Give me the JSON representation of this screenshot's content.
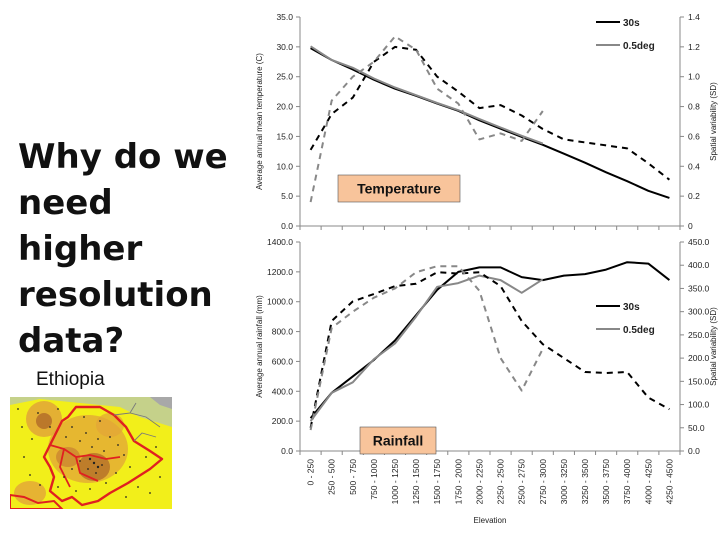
{
  "slide": {
    "question_lines": [
      "Why do we",
      "need higher",
      "resolution",
      "data?"
    ],
    "region_label": "Ethiopia",
    "map_icon": "ethiopia-map-icon",
    "colors": {
      "tag_background": "#f8c49b",
      "map_background": "#f2ef1a",
      "map_blob": "#e2a438",
      "map_border": "#e02020"
    }
  },
  "chart_data": [
    {
      "type": "line",
      "title": "Temperature",
      "xlabel": "",
      "ylabel": "Average annual mean temperature (C)",
      "y2label": "Spatial variability (SD)",
      "ylim": [
        0,
        35
      ],
      "y_ticks": [
        "0.0",
        "5.0",
        "10.0",
        "15.0",
        "20.0",
        "25.0",
        "30.0",
        "35.0"
      ],
      "y2lim": [
        0,
        1.4
      ],
      "y2_ticks": [
        "0",
        "0.2",
        "0.4",
        "0.6",
        "0.8",
        "1.0",
        "1.2",
        "1.4"
      ],
      "legend": "top-right",
      "grid": false,
      "categories": [
        "0 - 250",
        "250 - 500",
        "500 - 750",
        "750 - 1000",
        "1000 - 1250",
        "1250 - 1500",
        "1500 - 1750",
        "1750 - 2000",
        "2000 - 2250",
        "2250 - 2500",
        "2500 - 2750",
        "2750 - 3000",
        "3000 - 3250",
        "3250 - 3500",
        "3500 - 3750",
        "3750 - 4000",
        "4000 - 4250",
        "4250 - 4500"
      ],
      "series": [
        {
          "name": "30s",
          "axis": "left",
          "style": "solid",
          "color": "#000000",
          "values": [
            29.8,
            27.8,
            26.2,
            24.5,
            23.0,
            21.8,
            20.5,
            19.3,
            17.7,
            16.3,
            14.9,
            13.6,
            12.1,
            10.6,
            9.0,
            7.5,
            5.9,
            4.7
          ]
        },
        {
          "name": "0.5deg",
          "axis": "left",
          "style": "solid",
          "color": "#888888",
          "values": [
            30.1,
            27.8,
            26.5,
            24.7,
            23.2,
            21.9,
            20.6,
            19.4,
            17.9,
            16.5,
            15.1,
            13.8,
            null,
            null,
            null,
            null,
            null,
            null
          ]
        },
        {
          "name": "30s SD",
          "axis": "right",
          "style": "dashed",
          "color": "#000000",
          "values": [
            0.51,
            0.75,
            0.86,
            1.1,
            1.2,
            1.18,
            1.0,
            0.9,
            0.79,
            0.81,
            0.74,
            0.65,
            0.58,
            0.56,
            0.54,
            0.52,
            0.42,
            0.31
          ]
        },
        {
          "name": "0.5deg SD",
          "axis": "right",
          "style": "dashed",
          "color": "#888888",
          "values": [
            0.16,
            0.84,
            1.0,
            1.1,
            1.27,
            1.18,
            0.92,
            0.82,
            0.58,
            0.62,
            0.57,
            0.77,
            null,
            null,
            null,
            null,
            null,
            null
          ]
        }
      ]
    },
    {
      "type": "line",
      "title": "Rainfall",
      "xlabel": "Elevation",
      "ylabel": "Average annual rainfall (mm)",
      "y2label": "Spatial variability (SD)",
      "ylim": [
        0,
        1400
      ],
      "y_ticks": [
        "0.0",
        "200.0",
        "400.0",
        "600.0",
        "800.0",
        "1000.0",
        "1200.0",
        "1400.0"
      ],
      "y2lim": [
        0,
        450
      ],
      "y2_ticks": [
        "0.0",
        "50.0",
        "100.0",
        "150.0",
        "200.0",
        "250.0",
        "300.0",
        "350.0",
        "400.0",
        "450.0"
      ],
      "legend": "right",
      "grid": false,
      "categories": [
        "0 - 250",
        "250 - 500",
        "500 - 750",
        "750 - 1000",
        "1000 - 1250",
        "1250 - 1500",
        "1500 - 1750",
        "1750 - 2000",
        "2000 - 2250",
        "2250 - 2500",
        "2500 - 2750",
        "2750 - 3000",
        "3000 - 3250",
        "3250 - 3500",
        "3500 - 3750",
        "3750 - 4000",
        "4000 - 4250",
        "4250 - 4500"
      ],
      "series": [
        {
          "name": "30s",
          "axis": "left",
          "style": "solid",
          "color": "#000000",
          "values": [
            220,
            390,
            500,
            610,
            740,
            910,
            1080,
            1200,
            1230,
            1230,
            1165,
            1145,
            1175,
            1185,
            1215,
            1265,
            1255,
            1145
          ]
        },
        {
          "name": "0.5deg",
          "axis": "left",
          "style": "solid",
          "color": "#888888",
          "values": [
            200,
            390,
            460,
            615,
            720,
            900,
            1100,
            1125,
            1175,
            1145,
            1060,
            1150,
            null,
            null,
            null,
            null,
            null,
            null
          ]
        },
        {
          "name": "30s SD",
          "axis": "right",
          "style": "dashed",
          "color": "#000000",
          "values": [
            50,
            280,
            322,
            338,
            355,
            360,
            385,
            382,
            385,
            355,
            280,
            230,
            200,
            170,
            168,
            170,
            115,
            90
          ]
        },
        {
          "name": "0.5deg SD",
          "axis": "right",
          "style": "dashed",
          "color": "#888888",
          "values": [
            45,
            265,
            300,
            330,
            350,
            385,
            398,
            398,
            345,
            200,
            130,
            220,
            null,
            null,
            null,
            null,
            null,
            null
          ]
        }
      ]
    }
  ]
}
